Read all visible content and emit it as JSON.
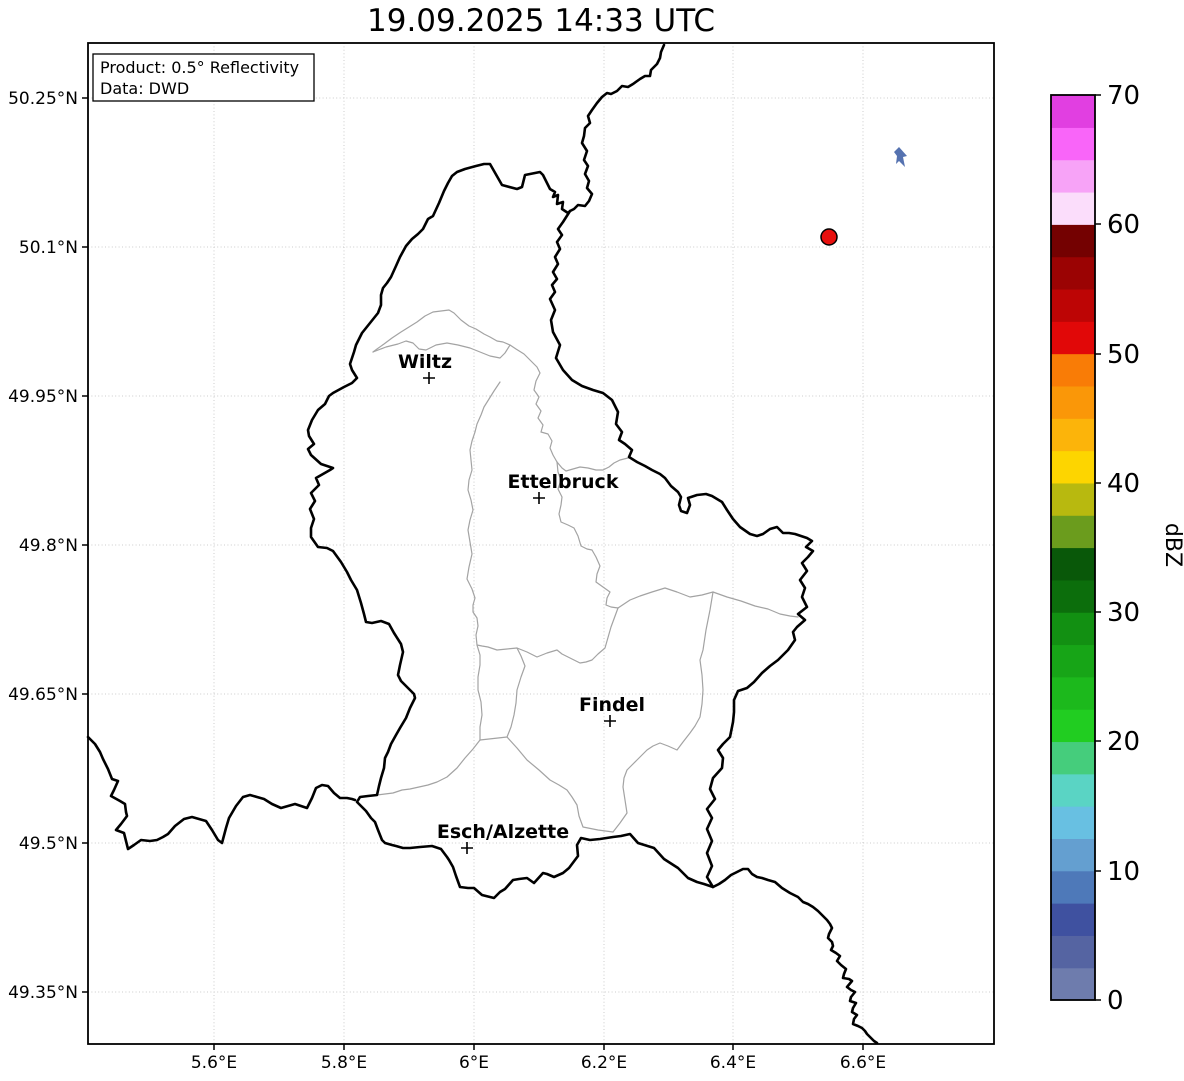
{
  "title": "19.09.2025 14:33 UTC",
  "info_box": {
    "product_line": "Product: 0.5° Reflectivity",
    "data_line": "Data: DWD"
  },
  "map": {
    "lat_ticks": [
      "50.25°N",
      "50.1°N",
      "49.95°N",
      "49.8°N",
      "49.65°N",
      "49.5°N",
      "49.35°N"
    ],
    "lon_ticks": [
      "5.6°E",
      "5.8°E",
      "6°E",
      "6.2°E",
      "6.4°E",
      "6.6°E"
    ],
    "cities": [
      "Wiltz",
      "Ettelbruck",
      "Findel",
      "Esch/Alzette"
    ],
    "markers": {
      "storm_cell": {
        "name": "strong echo dot",
        "color": "#e8100e"
      },
      "weak_echo": {
        "name": "weak echo patch",
        "color": "#5572b0"
      }
    }
  },
  "colorbar": {
    "label": "dBZ",
    "min": 0,
    "max": 70,
    "ticks_top_to_bottom": [
      70,
      60,
      50,
      40,
      30,
      20,
      10,
      0
    ],
    "step_dbz": 2.5,
    "colors_bottom_to_top": [
      "#6e7cad",
      "#5564a2",
      "#3f51a0",
      "#4e79b9",
      "#649fd0",
      "#68c0e2",
      "#5ad4c4",
      "#45cd7c",
      "#21cd21",
      "#1cb91c",
      "#17a517",
      "#129012",
      "#0c6e0c",
      "#095809",
      "#6b9c1d",
      "#b8b90f",
      "#fdd500",
      "#fcb40a",
      "#fa9708",
      "#f97c06",
      "#e10808",
      "#bd0505",
      "#9b0303",
      "#740101",
      "#fbddfb",
      "#f7a3f7",
      "#f965f9",
      "#e13fe1"
    ]
  }
}
